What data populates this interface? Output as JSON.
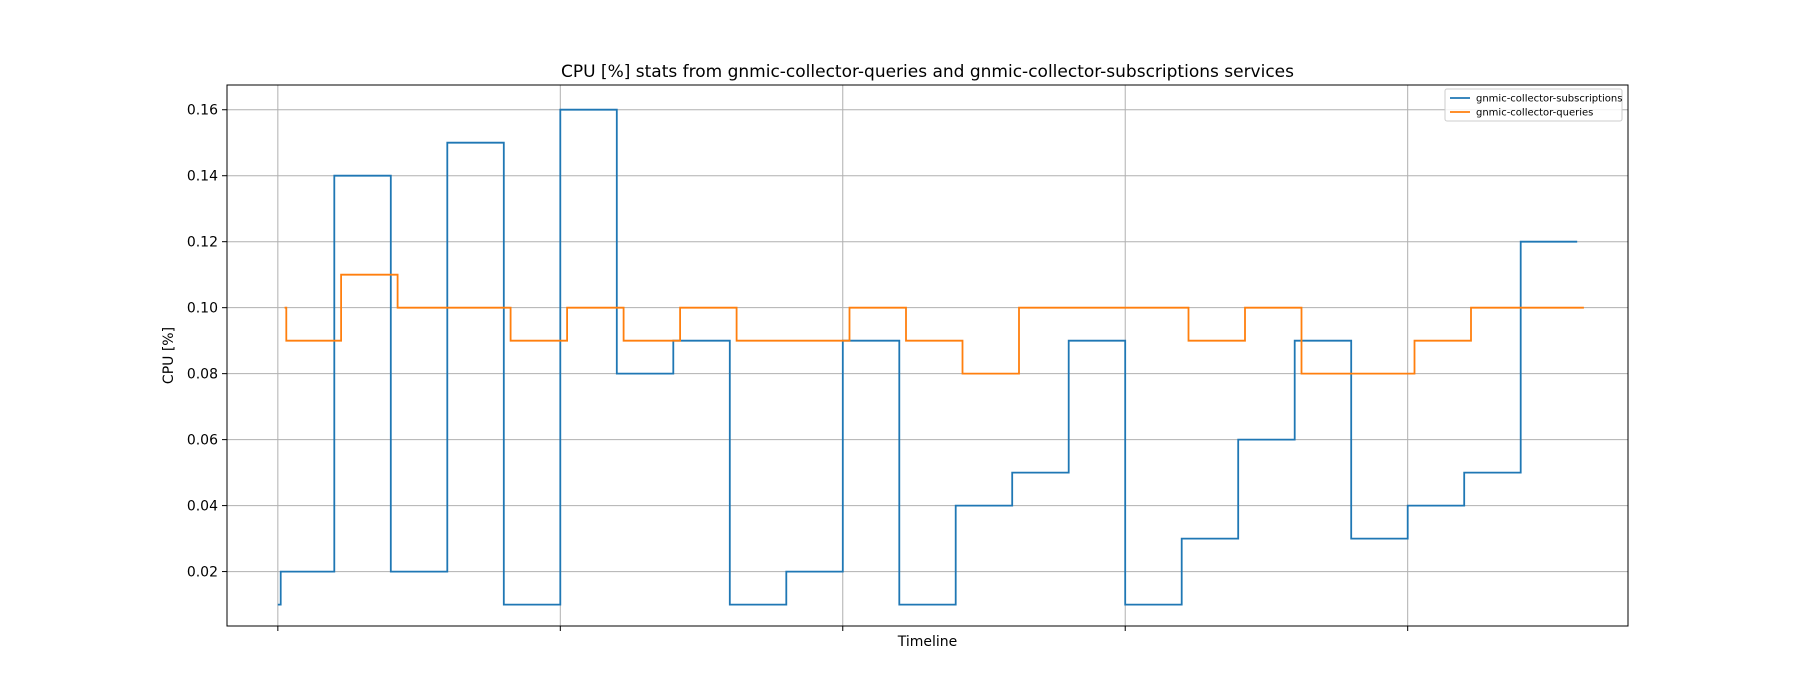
{
  "chart_data": {
    "type": "line",
    "drawstyle": "steps-post",
    "title": "CPU [%] stats from gnmic-collector-queries and gnmic-collector-subscriptions services",
    "xlabel": "Timeline",
    "ylabel": "CPU [%]",
    "ylim": [
      0.0035,
      0.1675
    ],
    "y_ticks": [
      "0.02",
      "0.04",
      "0.06",
      "0.08",
      "0.10",
      "0.12",
      "0.14",
      "0.16"
    ],
    "x_tick_labels_visible": false,
    "grid": true,
    "legend_position": "top-right",
    "series": [
      {
        "name": "gnmic-collector-subscriptions",
        "color": "#1f77b4",
        "points": [
          {
            "x": 0.0,
            "y": 0.01
          },
          {
            "x": 0.05,
            "y": 0.02
          },
          {
            "x": 1.0,
            "y": 0.14
          },
          {
            "x": 2.0,
            "y": 0.02
          },
          {
            "x": 3.0,
            "y": 0.15
          },
          {
            "x": 4.0,
            "y": 0.01
          },
          {
            "x": 5.0,
            "y": 0.16
          },
          {
            "x": 6.0,
            "y": 0.08
          },
          {
            "x": 7.0,
            "y": 0.09
          },
          {
            "x": 8.0,
            "y": 0.01
          },
          {
            "x": 9.0,
            "y": 0.02
          },
          {
            "x": 10.0,
            "y": 0.09
          },
          {
            "x": 11.0,
            "y": 0.01
          },
          {
            "x": 12.0,
            "y": 0.04
          },
          {
            "x": 13.0,
            "y": 0.05
          },
          {
            "x": 14.0,
            "y": 0.09
          },
          {
            "x": 15.0,
            "y": 0.01
          },
          {
            "x": 16.0,
            "y": 0.03
          },
          {
            "x": 17.0,
            "y": 0.06
          },
          {
            "x": 18.0,
            "y": 0.09
          },
          {
            "x": 19.0,
            "y": 0.03
          },
          {
            "x": 20.0,
            "y": 0.04
          },
          {
            "x": 21.0,
            "y": 0.05
          },
          {
            "x": 22.0,
            "y": 0.12
          },
          {
            "x": 23.0,
            "y": 0.12
          }
        ]
      },
      {
        "name": "gnmic-collector-queries",
        "color": "#ff7f0e",
        "points": [
          {
            "x": 0.12,
            "y": 0.1
          },
          {
            "x": 0.15,
            "y": 0.09
          },
          {
            "x": 1.12,
            "y": 0.11
          },
          {
            "x": 2.12,
            "y": 0.1
          },
          {
            "x": 4.12,
            "y": 0.09
          },
          {
            "x": 5.12,
            "y": 0.1
          },
          {
            "x": 6.12,
            "y": 0.09
          },
          {
            "x": 7.12,
            "y": 0.1
          },
          {
            "x": 8.12,
            "y": 0.09
          },
          {
            "x": 10.12,
            "y": 0.1
          },
          {
            "x": 11.12,
            "y": 0.09
          },
          {
            "x": 12.12,
            "y": 0.08
          },
          {
            "x": 13.12,
            "y": 0.1
          },
          {
            "x": 16.12,
            "y": 0.09
          },
          {
            "x": 17.12,
            "y": 0.1
          },
          {
            "x": 18.12,
            "y": 0.08
          },
          {
            "x": 20.12,
            "y": 0.09
          },
          {
            "x": 21.12,
            "y": 0.1
          },
          {
            "x": 23.12,
            "y": 0.1
          }
        ]
      }
    ]
  }
}
